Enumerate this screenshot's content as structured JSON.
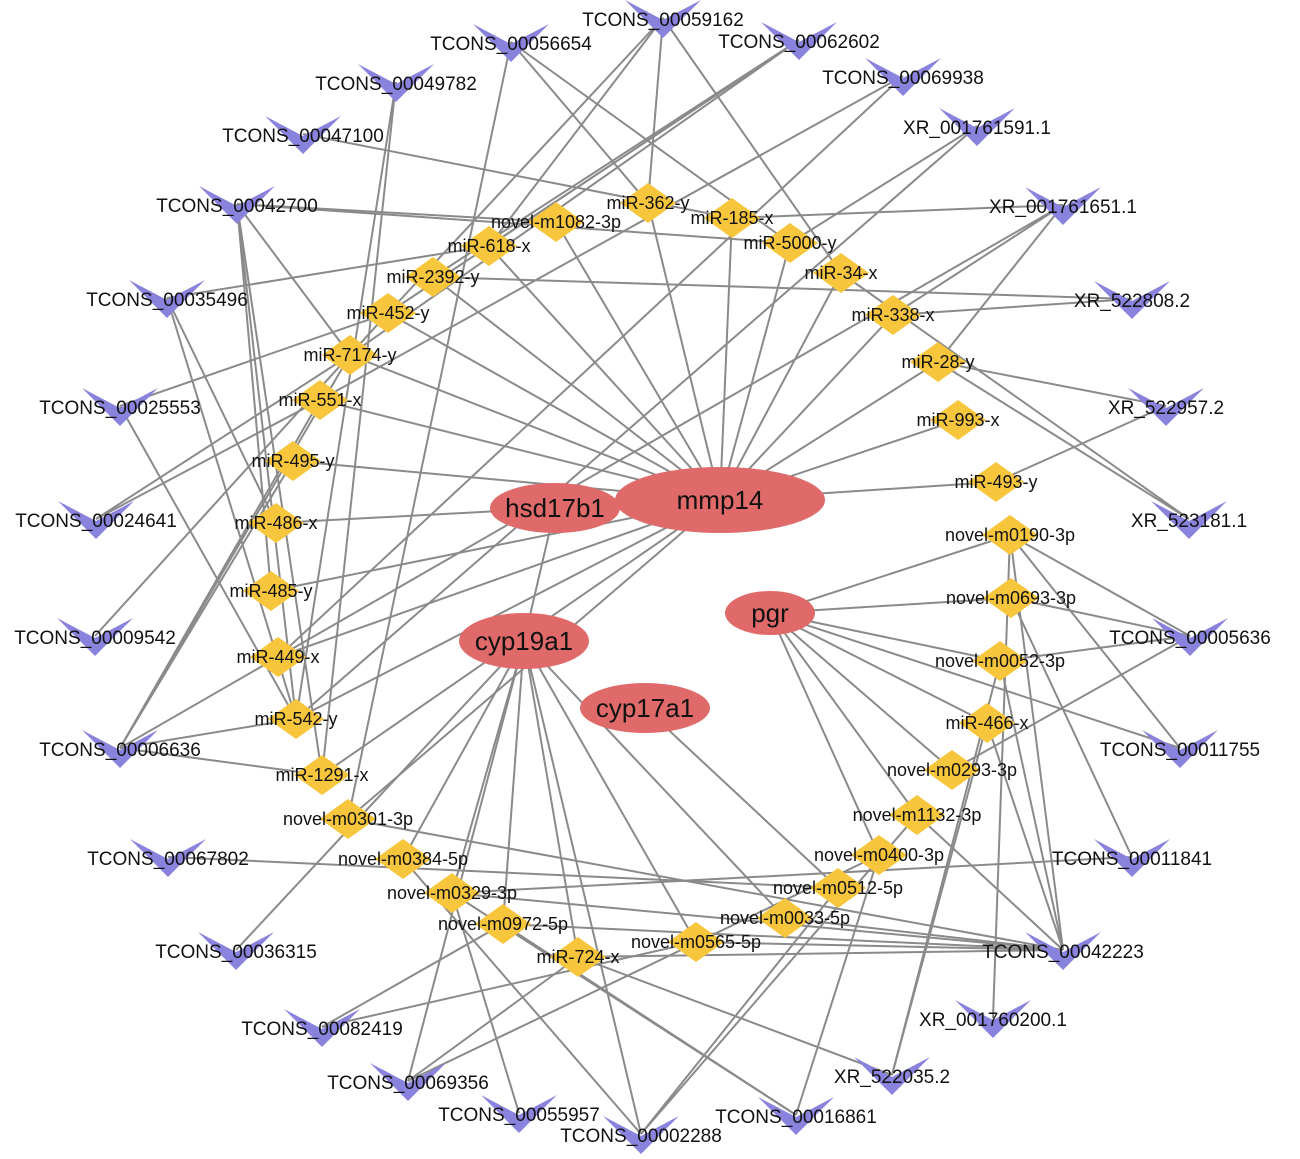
{
  "colors": {
    "gene": "#e06a6a",
    "mirna": "#f8c63c",
    "lncrna": "#8a83dd",
    "edge": "#8a8a8a"
  },
  "shapes": {
    "gene": "ellipse",
    "mirna": "diamond",
    "lncrna": "v-arrowhead"
  },
  "nodes": [
    {
      "id": "mmp14",
      "type": "gene"
    },
    {
      "id": "hsd17b1",
      "type": "gene"
    },
    {
      "id": "cyp19a1",
      "type": "gene"
    },
    {
      "id": "cyp17a1",
      "type": "gene"
    },
    {
      "id": "pgr",
      "type": "gene"
    },
    {
      "id": "miR-362-y",
      "type": "mirna"
    },
    {
      "id": "novel-m1082-3p",
      "type": "mirna"
    },
    {
      "id": "miR-185-x",
      "type": "mirna"
    },
    {
      "id": "miR-618-x",
      "type": "mirna"
    },
    {
      "id": "miR-5000-y",
      "type": "mirna"
    },
    {
      "id": "miR-2392-y",
      "type": "mirna"
    },
    {
      "id": "miR-34-x",
      "type": "mirna"
    },
    {
      "id": "miR-452-y",
      "type": "mirna"
    },
    {
      "id": "miR-338-x",
      "type": "mirna"
    },
    {
      "id": "miR-7174-y",
      "type": "mirna"
    },
    {
      "id": "miR-28-y",
      "type": "mirna"
    },
    {
      "id": "miR-551-x",
      "type": "mirna"
    },
    {
      "id": "miR-993-x",
      "type": "mirna"
    },
    {
      "id": "miR-495-y",
      "type": "mirna"
    },
    {
      "id": "miR-493-y",
      "type": "mirna"
    },
    {
      "id": "miR-486-x",
      "type": "mirna"
    },
    {
      "id": "novel-m0190-3p",
      "type": "mirna"
    },
    {
      "id": "miR-485-y",
      "type": "mirna"
    },
    {
      "id": "novel-m0693-3p",
      "type": "mirna"
    },
    {
      "id": "miR-449-x",
      "type": "mirna"
    },
    {
      "id": "novel-m0052-3p",
      "type": "mirna"
    },
    {
      "id": "miR-542-y",
      "type": "mirna"
    },
    {
      "id": "miR-466-x",
      "type": "mirna"
    },
    {
      "id": "miR-1291-x",
      "type": "mirna"
    },
    {
      "id": "novel-m0293-3p",
      "type": "mirna"
    },
    {
      "id": "novel-m0301-3p",
      "type": "mirna"
    },
    {
      "id": "novel-m1132-3p",
      "type": "mirna"
    },
    {
      "id": "novel-m0384-5p",
      "type": "mirna"
    },
    {
      "id": "novel-m0400-3p",
      "type": "mirna"
    },
    {
      "id": "novel-m0329-3p",
      "type": "mirna"
    },
    {
      "id": "novel-m0512-5p",
      "type": "mirna"
    },
    {
      "id": "novel-m0972-5p",
      "type": "mirna"
    },
    {
      "id": "novel-m0033-5p",
      "type": "mirna"
    },
    {
      "id": "novel-m0565-5p",
      "type": "mirna"
    },
    {
      "id": "miR-724-x",
      "type": "mirna"
    },
    {
      "id": "TCONS_00059162",
      "type": "lncrna"
    },
    {
      "id": "TCONS_00056654",
      "type": "lncrna"
    },
    {
      "id": "TCONS_00062602",
      "type": "lncrna"
    },
    {
      "id": "TCONS_00049782",
      "type": "lncrna"
    },
    {
      "id": "TCONS_00069938",
      "type": "lncrna"
    },
    {
      "id": "TCONS_00047100",
      "type": "lncrna"
    },
    {
      "id": "XR_001761591.1",
      "type": "lncrna"
    },
    {
      "id": "TCONS_00042700",
      "type": "lncrna"
    },
    {
      "id": "XR_001761651.1",
      "type": "lncrna"
    },
    {
      "id": "TCONS_00035496",
      "type": "lncrna"
    },
    {
      "id": "XR_522808.2",
      "type": "lncrna"
    },
    {
      "id": "TCONS_00025553",
      "type": "lncrna"
    },
    {
      "id": "XR_522957.2",
      "type": "lncrna"
    },
    {
      "id": "TCONS_00024641",
      "type": "lncrna"
    },
    {
      "id": "XR_523181.1",
      "type": "lncrna"
    },
    {
      "id": "TCONS_00009542",
      "type": "lncrna"
    },
    {
      "id": "TCONS_00005636",
      "type": "lncrna"
    },
    {
      "id": "TCONS_00006636",
      "type": "lncrna"
    },
    {
      "id": "TCONS_00011755",
      "type": "lncrna"
    },
    {
      "id": "TCONS_00067802",
      "type": "lncrna"
    },
    {
      "id": "TCONS_00011841",
      "type": "lncrna"
    },
    {
      "id": "TCONS_00036315",
      "type": "lncrna"
    },
    {
      "id": "TCONS_00042223",
      "type": "lncrna"
    },
    {
      "id": "TCONS_00082419",
      "type": "lncrna"
    },
    {
      "id": "XR_001760200.1",
      "type": "lncrna"
    },
    {
      "id": "TCONS_00069356",
      "type": "lncrna"
    },
    {
      "id": "XR_522035.2",
      "type": "lncrna"
    },
    {
      "id": "TCONS_00055957",
      "type": "lncrna"
    },
    {
      "id": "TCONS_00016861",
      "type": "lncrna"
    },
    {
      "id": "TCONS_00002288",
      "type": "lncrna"
    }
  ],
  "edges": [
    [
      "mmp14",
      "miR-362-y"
    ],
    [
      "mmp14",
      "novel-m1082-3p"
    ],
    [
      "mmp14",
      "miR-185-x"
    ],
    [
      "mmp14",
      "miR-618-x"
    ],
    [
      "mmp14",
      "miR-5000-y"
    ],
    [
      "mmp14",
      "miR-2392-y"
    ],
    [
      "mmp14",
      "miR-34-x"
    ],
    [
      "mmp14",
      "miR-452-y"
    ],
    [
      "mmp14",
      "miR-338-x"
    ],
    [
      "mmp14",
      "miR-7174-y"
    ],
    [
      "mmp14",
      "miR-28-y"
    ],
    [
      "mmp14",
      "miR-551-x"
    ],
    [
      "mmp14",
      "miR-993-x"
    ],
    [
      "mmp14",
      "miR-495-y"
    ],
    [
      "mmp14",
      "miR-493-y"
    ],
    [
      "mmp14",
      "miR-485-y"
    ],
    [
      "mmp14",
      "miR-449-x"
    ],
    [
      "mmp14",
      "miR-542-y"
    ],
    [
      "mmp14",
      "miR-1291-x"
    ],
    [
      "mmp14",
      "novel-m0301-3p"
    ],
    [
      "hsd17b1",
      "miR-486-x"
    ],
    [
      "hsd17b1",
      "cyp19a1"
    ],
    [
      "cyp19a1",
      "novel-m0384-5p"
    ],
    [
      "cyp19a1",
      "novel-m0329-3p"
    ],
    [
      "cyp19a1",
      "novel-m0972-5p"
    ],
    [
      "cyp19a1",
      "miR-724-x"
    ],
    [
      "cyp19a1",
      "novel-m0565-5p"
    ],
    [
      "cyp19a1",
      "novel-m0033-5p"
    ],
    [
      "cyp19a1",
      "TCONS_00036315"
    ],
    [
      "cyp19a1",
      "TCONS_00069356"
    ],
    [
      "cyp19a1",
      "TCONS_00002288"
    ],
    [
      "cyp17a1",
      "novel-m0512-5p"
    ],
    [
      "pgr",
      "novel-m0693-3p"
    ],
    [
      "pgr",
      "novel-m0052-3p"
    ],
    [
      "pgr",
      "novel-m0190-3p"
    ],
    [
      "pgr",
      "TCONS_00011755"
    ],
    [
      "pgr",
      "miR-466-x"
    ],
    [
      "pgr",
      "novel-m0293-3p"
    ],
    [
      "pgr",
      "novel-m1132-3p"
    ],
    [
      "pgr",
      "novel-m0400-3p"
    ],
    [
      "TCONS_00059162",
      "miR-362-y"
    ],
    [
      "TCONS_00059162",
      "miR-618-x"
    ],
    [
      "TCONS_00059162",
      "miR-34-x"
    ],
    [
      "TCONS_00059162",
      "miR-452-y"
    ],
    [
      "TCONS_00056654",
      "miR-362-y"
    ],
    [
      "TCONS_00056654",
      "novel-m0301-3p"
    ],
    [
      "TCONS_00056654",
      "miR-5000-y"
    ],
    [
      "TCONS_00062602",
      "miR-618-x"
    ],
    [
      "TCONS_00062602",
      "miR-2392-y"
    ],
    [
      "TCONS_00062602",
      "miR-452-y"
    ],
    [
      "TCONS_00062602",
      "miR-7174-y"
    ],
    [
      "TCONS_00049782",
      "miR-542-y"
    ],
    [
      "TCONS_00049782",
      "miR-1291-x"
    ],
    [
      "TCONS_00069938",
      "miR-551-x"
    ],
    [
      "TCONS_00069938",
      "miR-449-x"
    ],
    [
      "TCONS_00047100",
      "miR-185-x"
    ],
    [
      "XR_001761591.1",
      "miR-5000-y"
    ],
    [
      "XR_001761591.1",
      "miR-542-y"
    ],
    [
      "TCONS_00042700",
      "novel-m1082-3p"
    ],
    [
      "TCONS_00042700",
      "miR-5000-y"
    ],
    [
      "TCONS_00042700",
      "miR-7174-y"
    ],
    [
      "TCONS_00042700",
      "miR-542-y"
    ],
    [
      "TCONS_00042700",
      "miR-1291-x"
    ],
    [
      "TCONS_00042700",
      "miR-485-y"
    ],
    [
      "XR_001761651.1",
      "miR-185-x"
    ],
    [
      "XR_001761651.1",
      "miR-338-x"
    ],
    [
      "XR_001761651.1",
      "miR-28-y"
    ],
    [
      "XR_001761651.1",
      "miR-449-x"
    ],
    [
      "TCONS_00035496",
      "miR-618-x"
    ],
    [
      "TCONS_00035496",
      "miR-486-x"
    ],
    [
      "TCONS_00035496",
      "miR-542-y"
    ],
    [
      "XR_522808.2",
      "miR-2392-y"
    ],
    [
      "XR_522808.2",
      "miR-338-x"
    ],
    [
      "TCONS_00025553",
      "miR-452-y"
    ],
    [
      "TCONS_00025553",
      "miR-542-y"
    ],
    [
      "XR_522957.2",
      "miR-28-y"
    ],
    [
      "XR_522957.2",
      "miR-493-y"
    ],
    [
      "TCONS_00024641",
      "miR-7174-y"
    ],
    [
      "TCONS_00024641",
      "miR-551-x"
    ],
    [
      "XR_523181.1",
      "miR-28-y"
    ],
    [
      "XR_523181.1",
      "miR-34-x"
    ],
    [
      "TCONS_00009542",
      "miR-452-y"
    ],
    [
      "TCONS_00005636",
      "novel-m0190-3p"
    ],
    [
      "TCONS_00005636",
      "novel-m0693-3p"
    ],
    [
      "TCONS_00005636",
      "novel-m0052-3p"
    ],
    [
      "TCONS_00005636",
      "novel-m0293-3p"
    ],
    [
      "TCONS_00006636",
      "miR-542-y"
    ],
    [
      "TCONS_00006636",
      "miR-1291-x"
    ],
    [
      "TCONS_00006636",
      "miR-551-x"
    ],
    [
      "TCONS_00006636",
      "miR-7174-y"
    ],
    [
      "TCONS_00006636",
      "miR-495-y"
    ],
    [
      "TCONS_00006636",
      "miR-449-x"
    ],
    [
      "TCONS_00011755",
      "novel-m0190-3p"
    ],
    [
      "TCONS_00067802",
      "novel-m0512-5p"
    ],
    [
      "TCONS_00011841",
      "novel-m0693-3p"
    ],
    [
      "TCONS_00011841",
      "novel-m0329-3p"
    ],
    [
      "TCONS_00042223",
      "novel-m0301-3p"
    ],
    [
      "TCONS_00042223",
      "novel-m0329-3p"
    ],
    [
      "TCONS_00042223",
      "novel-m0972-5p"
    ],
    [
      "TCONS_00042223",
      "miR-724-x"
    ],
    [
      "TCONS_00042223",
      "novel-m0565-5p"
    ],
    [
      "TCONS_00042223",
      "novel-m0033-5p"
    ],
    [
      "TCONS_00042223",
      "novel-m0190-3p"
    ],
    [
      "TCONS_00042223",
      "miR-466-x"
    ],
    [
      "TCONS_00042223",
      "novel-m0052-3p"
    ],
    [
      "TCONS_00042223",
      "novel-m1132-3p"
    ],
    [
      "TCONS_00082419",
      "novel-m0972-5p"
    ],
    [
      "TCONS_00082419",
      "novel-m0565-5p"
    ],
    [
      "XR_001760200.1",
      "novel-m0190-3p"
    ],
    [
      "TCONS_00069356",
      "miR-724-x"
    ],
    [
      "TCONS_00069356",
      "novel-m0400-3p"
    ],
    [
      "XR_522035.2",
      "miR-466-x"
    ],
    [
      "XR_522035.2",
      "miR-724-x"
    ],
    [
      "XR_522035.2",
      "novel-m0052-3p"
    ],
    [
      "TCONS_00055957",
      "novel-m0329-3p"
    ],
    [
      "TCONS_00016861",
      "novel-m0972-5p"
    ],
    [
      "TCONS_00016861",
      "novel-m0329-3p"
    ],
    [
      "TCONS_00016861",
      "novel-m0400-3p"
    ],
    [
      "TCONS_00002288",
      "novel-m0512-5p"
    ],
    [
      "TCONS_00002288",
      "novel-m0384-5p"
    ],
    [
      "TCONS_00002288",
      "novel-m1132-3p"
    ]
  ]
}
